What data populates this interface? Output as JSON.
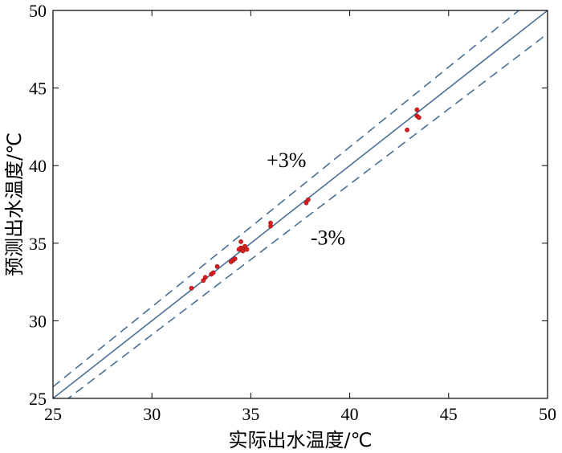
{
  "chart_data": {
    "type": "scatter",
    "xlabel": "实际出水温度/℃",
    "ylabel": "预测出水温度/℃",
    "xlim": [
      25,
      50
    ],
    "ylim": [
      25,
      50
    ],
    "xticks": [
      25,
      30,
      35,
      40,
      45,
      50
    ],
    "yticks": [
      25,
      30,
      35,
      40,
      45,
      50
    ],
    "grid": false,
    "reference_lines": [
      {
        "name": "y=x",
        "slope": 1.0,
        "style": "solid",
        "color": "#4a6f96"
      },
      {
        "name": "+3%",
        "slope": 1.03,
        "style": "dashed",
        "color": "#4a6f96"
      },
      {
        "name": "-3%",
        "slope": 0.97,
        "style": "dashed",
        "color": "#4a6f96"
      }
    ],
    "annotations": [
      {
        "text": "+3%",
        "x": 36.8,
        "y": 39.9
      },
      {
        "text": "-3%",
        "x": 38.9,
        "y": 34.9
      }
    ],
    "points": [
      {
        "x": 32.0,
        "y": 32.1
      },
      {
        "x": 32.6,
        "y": 32.6
      },
      {
        "x": 32.7,
        "y": 32.8
      },
      {
        "x": 33.0,
        "y": 33.0
      },
      {
        "x": 33.1,
        "y": 33.1
      },
      {
        "x": 33.3,
        "y": 33.5
      },
      {
        "x": 34.0,
        "y": 33.8
      },
      {
        "x": 34.1,
        "y": 33.9
      },
      {
        "x": 34.2,
        "y": 34.0
      },
      {
        "x": 34.5,
        "y": 35.1
      },
      {
        "x": 34.5,
        "y": 34.7
      },
      {
        "x": 34.6,
        "y": 34.5
      },
      {
        "x": 34.7,
        "y": 34.8
      },
      {
        "x": 34.8,
        "y": 34.6
      },
      {
        "x": 34.4,
        "y": 34.6
      },
      {
        "x": 36.0,
        "y": 36.1
      },
      {
        "x": 36.0,
        "y": 36.3
      },
      {
        "x": 37.8,
        "y": 37.6
      },
      {
        "x": 37.9,
        "y": 37.8
      },
      {
        "x": 42.9,
        "y": 42.3
      },
      {
        "x": 43.4,
        "y": 43.6
      },
      {
        "x": 43.4,
        "y": 43.2
      },
      {
        "x": 43.5,
        "y": 43.1
      }
    ],
    "marker_color": "#e02020"
  }
}
